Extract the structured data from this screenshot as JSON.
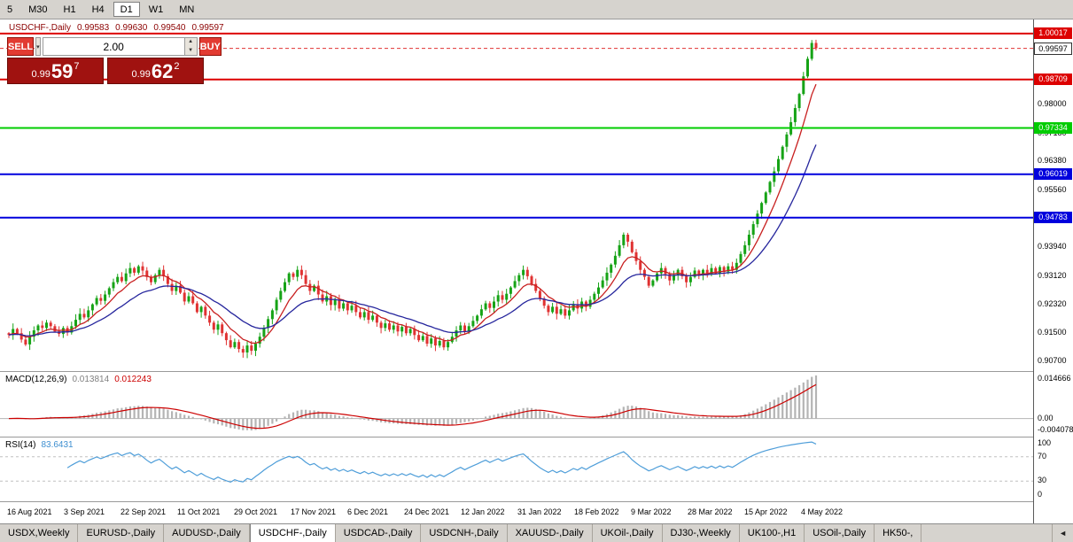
{
  "toolbar": {
    "timeframes": [
      {
        "label": "5",
        "active": false
      },
      {
        "label": "M30",
        "active": false
      },
      {
        "label": "H1",
        "active": false
      },
      {
        "label": "H4",
        "active": false
      },
      {
        "label": "D1",
        "active": true
      },
      {
        "label": "W1",
        "active": false
      },
      {
        "label": "MN",
        "active": false
      }
    ]
  },
  "info_line": {
    "symbol": "USDCHF-,Daily",
    "open": "0.99583",
    "high": "0.99630",
    "low": "0.99540",
    "close": "0.99597"
  },
  "trade_panel": {
    "sell_label": "SELL",
    "buy_label": "BUY",
    "volume": "2.00",
    "dropdown_icon": "▾",
    "spinner_up": "▲",
    "spinner_down": "▼",
    "sell_price": {
      "prefix": "0.99",
      "big": "59",
      "sup": "7"
    },
    "buy_price": {
      "prefix": "0.99",
      "big": "62",
      "sup": "2"
    }
  },
  "price_axis": {
    "current": {
      "label": "0.99597",
      "price": 0.99597
    },
    "ticks": [
      {
        "label": "0.98000",
        "price": 0.98
      },
      {
        "label": "0.97180",
        "price": 0.9718
      },
      {
        "label": "0.96380",
        "price": 0.9638
      },
      {
        "label": "0.95560",
        "price": 0.9556
      },
      {
        "label": "0.93940",
        "price": 0.9394
      },
      {
        "label": "0.93120",
        "price": 0.9312
      },
      {
        "label": "0.92320",
        "price": 0.9232
      },
      {
        "label": "0.91500",
        "price": 0.915
      },
      {
        "label": "0.90700",
        "price": 0.907
      }
    ]
  },
  "chart_data": {
    "type": "candlestick",
    "symbol": "USDCHF-,Daily",
    "x_labels": [
      "16 Aug 2021",
      "3 Sep 2021",
      "22 Sep 2021",
      "11 Oct 2021",
      "29 Oct 2021",
      "17 Nov 2021",
      "6 Dec 2021",
      "24 Dec 2021",
      "12 Jan 2022",
      "31 Jan 2022",
      "18 Feb 2022",
      "9 Mar 2022",
      "28 Mar 2022",
      "15 Apr 2022",
      "4 May 2022"
    ],
    "y_axis_visible_range": [
      0.9047,
      1.0042
    ],
    "first_open": 0.915,
    "closes": [
      0.9145,
      0.9162,
      0.915,
      0.9132,
      0.9118,
      0.914,
      0.9158,
      0.9172,
      0.9165,
      0.918,
      0.917,
      0.9155,
      0.9148,
      0.9165,
      0.9152,
      0.917,
      0.9188,
      0.9205,
      0.9195,
      0.9215,
      0.9232,
      0.925,
      0.9242,
      0.926,
      0.9278,
      0.9295,
      0.931,
      0.9298,
      0.932,
      0.9335,
      0.9322,
      0.934,
      0.9328,
      0.931,
      0.9295,
      0.9315,
      0.933,
      0.9312,
      0.929,
      0.927,
      0.9285,
      0.9265,
      0.924,
      0.9255,
      0.9235,
      0.921,
      0.9225,
      0.92,
      0.918,
      0.916,
      0.9175,
      0.915,
      0.913,
      0.911,
      0.9125,
      0.9105,
      0.9095,
      0.9115,
      0.91,
      0.912,
      0.914,
      0.9165,
      0.919,
      0.9215,
      0.9245,
      0.927,
      0.9295,
      0.932,
      0.931,
      0.933,
      0.9315,
      0.929,
      0.927,
      0.9285,
      0.926,
      0.924,
      0.9255,
      0.923,
      0.9245,
      0.922,
      0.9235,
      0.9215,
      0.9228,
      0.921,
      0.9195,
      0.921,
      0.9188,
      0.92,
      0.918,
      0.9165,
      0.9178,
      0.916,
      0.9172,
      0.9155,
      0.9168,
      0.915,
      0.9162,
      0.9145,
      0.913,
      0.9142,
      0.912,
      0.9135,
      0.9115,
      0.9128,
      0.911,
      0.9125,
      0.914,
      0.9158,
      0.9172,
      0.9155,
      0.917,
      0.9185,
      0.92,
      0.9218,
      0.9235,
      0.9222,
      0.924,
      0.9258,
      0.9245,
      0.9262,
      0.928,
      0.9298,
      0.9315,
      0.933,
      0.9312,
      0.929,
      0.927,
      0.9248,
      0.9228,
      0.921,
      0.9225,
      0.9205,
      0.9218,
      0.92,
      0.9215,
      0.9232,
      0.922,
      0.924,
      0.9225,
      0.9245,
      0.9262,
      0.928,
      0.93,
      0.9322,
      0.9345,
      0.937,
      0.94,
      0.943,
      0.941,
      0.938,
      0.9355,
      0.933,
      0.931,
      0.9285,
      0.93,
      0.932,
      0.9335,
      0.9318,
      0.93,
      0.9315,
      0.933,
      0.9312,
      0.9295,
      0.931,
      0.9328,
      0.9315,
      0.933,
      0.9318,
      0.9335,
      0.932,
      0.9338,
      0.9325,
      0.934,
      0.933,
      0.935,
      0.9375,
      0.94,
      0.943,
      0.946,
      0.949,
      0.952,
      0.955,
      0.958,
      0.961,
      0.9645,
      0.968,
      0.9715,
      0.975,
      0.979,
      0.983,
      0.988,
      0.993,
      0.9975,
      0.996
    ],
    "candle_colors": {
      "up": "#16a316",
      "down": "#e03232"
    },
    "ma_lines": [
      {
        "name": "ma-fast",
        "color": "#c82020",
        "period": 8
      },
      {
        "name": "ma-slow",
        "color": "#26269d",
        "period": 21
      }
    ],
    "levels": [
      {
        "label": "1.00017",
        "price": 1.00017,
        "color": "#dd0000"
      },
      {
        "label": "0.98709",
        "price": 0.98709,
        "color": "#dd0000"
      },
      {
        "label": "0.97334",
        "price": 0.97334,
        "color": "#00cc00"
      },
      {
        "label": "0.96019",
        "price": 0.96019,
        "color": "#0000dd"
      },
      {
        "label": "0.94783",
        "price": 0.94783,
        "color": "#0000dd"
      }
    ],
    "current_price": 0.99597,
    "macd": {
      "label": "MACD(12,26,9)",
      "value_main": "0.013814",
      "value_signal": "0.012243",
      "axis_labels": [
        "0.014666",
        "0.00",
        "-0.004078"
      ],
      "params": [
        12,
        26,
        9
      ],
      "histogram_color": "#b4b4b4",
      "signal_color": "#cc0000"
    },
    "rsi": {
      "label": "RSI(14)",
      "value": "83.6431",
      "axis_labels": [
        "100",
        "70",
        "30",
        "0"
      ],
      "levels": [
        70,
        30
      ],
      "period": 14,
      "color": "#4f9ed9"
    }
  },
  "bottom_tabs": {
    "tabs": [
      {
        "label": "USDX,Weekly",
        "active": false
      },
      {
        "label": "EURUSD-,Daily",
        "active": false
      },
      {
        "label": "AUDUSD-,Daily",
        "active": false
      },
      {
        "label": "USDCHF-,Daily",
        "active": true
      },
      {
        "label": "USDCAD-,Daily",
        "active": false
      },
      {
        "label": "USDCNH-,Daily",
        "active": false
      },
      {
        "label": "XAUUSD-,Daily",
        "active": false
      },
      {
        "label": "UKOil-,Daily",
        "active": false
      },
      {
        "label": "DJ30-,Weekly",
        "active": false
      },
      {
        "label": "UK100-,H1",
        "active": false
      },
      {
        "label": "USOil-,Daily",
        "active": false
      },
      {
        "label": "HK50-,",
        "active": false
      }
    ],
    "scroll_icon": "◄"
  }
}
